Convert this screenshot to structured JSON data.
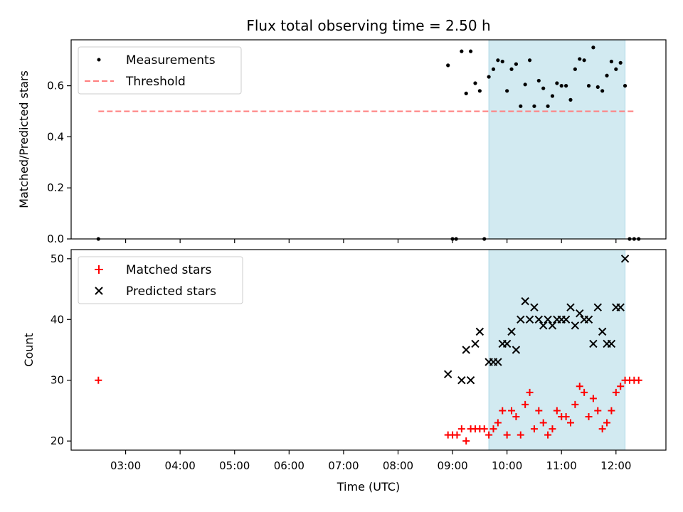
{
  "chart_data": [
    {
      "type": "scatter",
      "title": "Flux total observing time = 2.50 h",
      "xlabel": "",
      "ylabel": "Matched/Predicted stars",
      "ylim": [
        0.0,
        0.78
      ],
      "yticks": [
        "0.0",
        "0.2",
        "0.4",
        "0.6"
      ],
      "shaded_interval": [
        "09:40",
        "12:10"
      ],
      "shade_color": "#add8e6",
      "legend_position": "top-left",
      "series": [
        {
          "name": "Measurements",
          "marker": "dot",
          "color": "#000000",
          "points": [
            [
              "02:30",
              0.0
            ],
            [
              "09:00",
              0.0
            ],
            [
              "09:04",
              0.0
            ],
            [
              "09:35",
              0.0
            ],
            [
              "08:55",
              0.68
            ],
            [
              "09:10",
              0.735
            ],
            [
              "09:15",
              0.57
            ],
            [
              "09:20",
              0.735
            ],
            [
              "09:25",
              0.61
            ],
            [
              "09:30",
              0.58
            ],
            [
              "09:40",
              0.635
            ],
            [
              "09:45",
              0.665
            ],
            [
              "09:50",
              0.7
            ],
            [
              "09:55",
              0.695
            ],
            [
              "10:00",
              0.58
            ],
            [
              "10:05",
              0.665
            ],
            [
              "10:10",
              0.685
            ],
            [
              "10:15",
              0.52
            ],
            [
              "10:20",
              0.605
            ],
            [
              "10:25",
              0.7
            ],
            [
              "10:30",
              0.52
            ],
            [
              "10:35",
              0.62
            ],
            [
              "10:40",
              0.59
            ],
            [
              "10:45",
              0.52
            ],
            [
              "10:50",
              0.56
            ],
            [
              "10:55",
              0.61
            ],
            [
              "11:00",
              0.6
            ],
            [
              "11:05",
              0.6
            ],
            [
              "11:10",
              0.545
            ],
            [
              "11:15",
              0.665
            ],
            [
              "11:20",
              0.705
            ],
            [
              "11:25",
              0.7
            ],
            [
              "11:30",
              0.6
            ],
            [
              "11:35",
              0.75
            ],
            [
              "11:40",
              0.595
            ],
            [
              "11:45",
              0.58
            ],
            [
              "11:50",
              0.64
            ],
            [
              "11:55",
              0.695
            ],
            [
              "12:00",
              0.665
            ],
            [
              "12:05",
              0.69
            ],
            [
              "12:10",
              0.6
            ],
            [
              "12:15",
              0.0
            ],
            [
              "12:20",
              0.0
            ],
            [
              "12:25",
              0.0
            ]
          ]
        },
        {
          "name": "Threshold",
          "type": "line",
          "dashed": true,
          "color": "#ff7f7f",
          "points": [
            [
              "02:30",
              0.5
            ],
            [
              "12:20",
              0.5
            ]
          ]
        }
      ]
    },
    {
      "type": "scatter",
      "xlabel": "Time (UTC)",
      "ylabel": "Count",
      "ylim": [
        18.5,
        51.5
      ],
      "yticks": [
        "20",
        "30",
        "40",
        "50"
      ],
      "xticks": [
        "03:00",
        "04:00",
        "05:00",
        "06:00",
        "07:00",
        "08:00",
        "09:00",
        "10:00",
        "11:00",
        "12:00"
      ],
      "xlim": [
        "02:00",
        "12:55"
      ],
      "shaded_interval": [
        "09:40",
        "12:10"
      ],
      "shade_color": "#add8e6",
      "legend_position": "top-left",
      "series": [
        {
          "name": "Matched stars",
          "marker": "plus",
          "color": "#ff0000",
          "points": [
            [
              "02:30",
              30
            ],
            [
              "08:55",
              21
            ],
            [
              "09:00",
              21
            ],
            [
              "09:05",
              21
            ],
            [
              "09:10",
              22
            ],
            [
              "09:15",
              20
            ],
            [
              "09:20",
              22
            ],
            [
              "09:25",
              22
            ],
            [
              "09:30",
              22
            ],
            [
              "09:35",
              22
            ],
            [
              "09:40",
              21
            ],
            [
              "09:45",
              22
            ],
            [
              "09:50",
              23
            ],
            [
              "09:55",
              25
            ],
            [
              "10:00",
              21
            ],
            [
              "10:05",
              25
            ],
            [
              "10:10",
              24
            ],
            [
              "10:15",
              21
            ],
            [
              "10:20",
              26
            ],
            [
              "10:25",
              28
            ],
            [
              "10:30",
              22
            ],
            [
              "10:35",
              25
            ],
            [
              "10:40",
              23
            ],
            [
              "10:45",
              21
            ],
            [
              "10:50",
              22
            ],
            [
              "10:55",
              25
            ],
            [
              "11:00",
              24
            ],
            [
              "11:05",
              24
            ],
            [
              "11:10",
              23
            ],
            [
              "11:15",
              26
            ],
            [
              "11:20",
              29
            ],
            [
              "11:25",
              28
            ],
            [
              "11:30",
              24
            ],
            [
              "11:35",
              27
            ],
            [
              "11:40",
              25
            ],
            [
              "11:45",
              22
            ],
            [
              "11:50",
              23
            ],
            [
              "11:55",
              25
            ],
            [
              "12:00",
              28
            ],
            [
              "12:05",
              29
            ],
            [
              "12:10",
              30
            ],
            [
              "12:15",
              30
            ],
            [
              "12:20",
              30
            ],
            [
              "12:25",
              30
            ]
          ]
        },
        {
          "name": "Predicted stars",
          "marker": "x",
          "color": "#000000",
          "points": [
            [
              "08:55",
              31
            ],
            [
              "09:10",
              30
            ],
            [
              "09:15",
              35
            ],
            [
              "09:20",
              30
            ],
            [
              "09:25",
              36
            ],
            [
              "09:30",
              38
            ],
            [
              "09:40",
              33
            ],
            [
              "09:45",
              33
            ],
            [
              "09:50",
              33
            ],
            [
              "09:55",
              36
            ],
            [
              "10:00",
              36
            ],
            [
              "10:05",
              38
            ],
            [
              "10:10",
              35
            ],
            [
              "10:15",
              40
            ],
            [
              "10:20",
              43
            ],
            [
              "10:25",
              40
            ],
            [
              "10:30",
              42
            ],
            [
              "10:35",
              40
            ],
            [
              "10:40",
              39
            ],
            [
              "10:45",
              40
            ],
            [
              "10:50",
              39
            ],
            [
              "10:55",
              40
            ],
            [
              "11:00",
              40
            ],
            [
              "11:05",
              40
            ],
            [
              "11:10",
              42
            ],
            [
              "11:15",
              39
            ],
            [
              "11:20",
              41
            ],
            [
              "11:25",
              40
            ],
            [
              "11:30",
              40
            ],
            [
              "11:35",
              36
            ],
            [
              "11:40",
              42
            ],
            [
              "11:45",
              38
            ],
            [
              "11:50",
              36
            ],
            [
              "11:55",
              36
            ],
            [
              "12:00",
              42
            ],
            [
              "12:05",
              42
            ],
            [
              "12:10",
              50
            ]
          ]
        }
      ]
    }
  ]
}
